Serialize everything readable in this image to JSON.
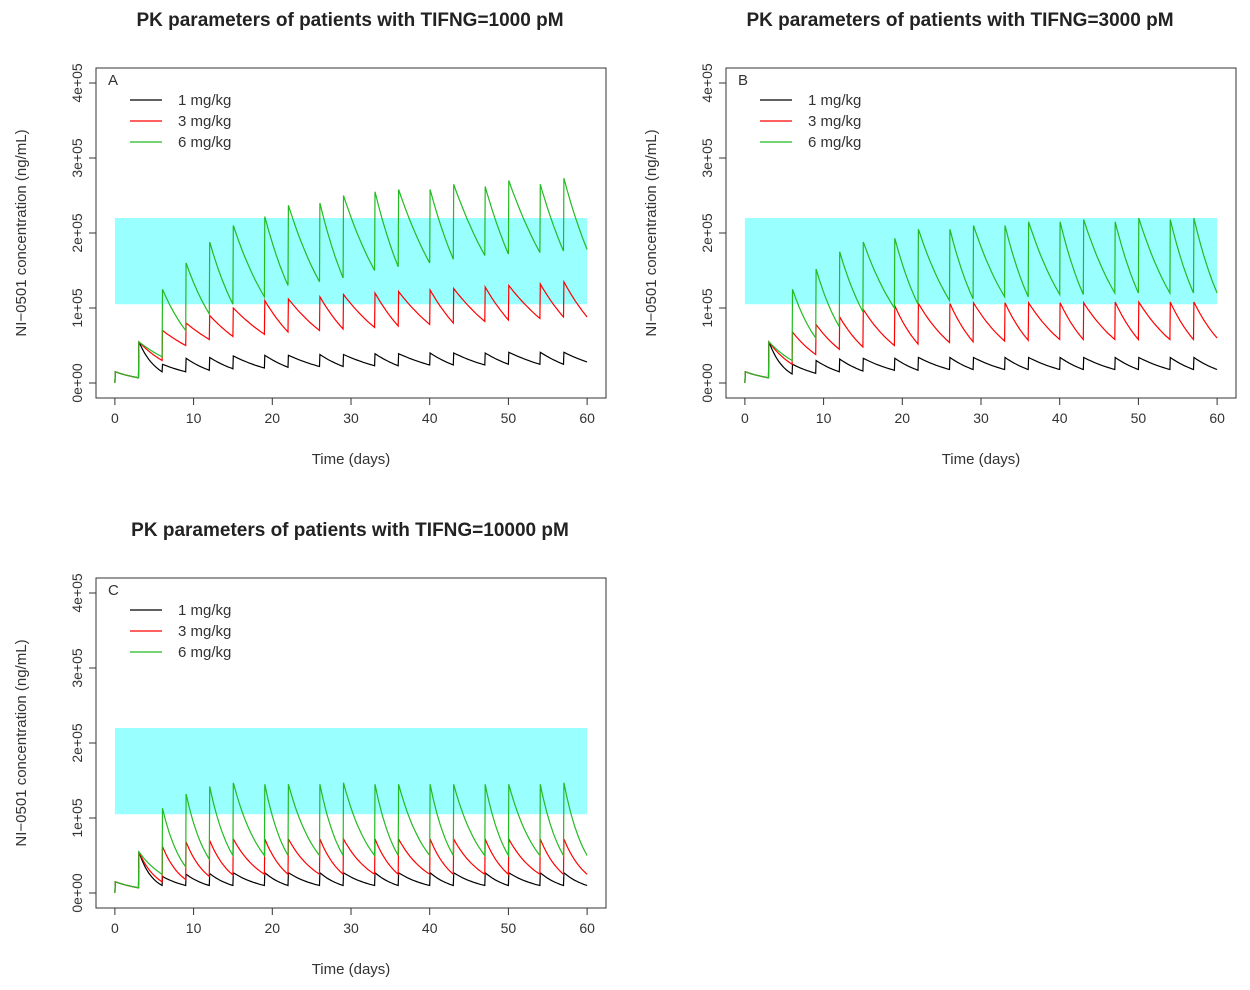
{
  "chart_data": [
    {
      "type": "line",
      "title": "PK parameters of patients with TIFNG=1000 pM",
      "panel_label": "A",
      "xlabel": "Time (days)",
      "ylabel": "NI−0501 concentration (ng/mL)",
      "xlim": [
        0,
        60
      ],
      "ylim": [
        0,
        400000
      ],
      "xticks": [
        "0",
        "10",
        "20",
        "30",
        "40",
        "50",
        "60"
      ],
      "yticks": [
        "0e+00",
        "1e+05",
        "2e+05",
        "3e+05",
        "4e+05"
      ],
      "target_band": [
        105000,
        220000
      ],
      "legend_position": "top-left",
      "dose_days": [
        0,
        3,
        6,
        9,
        12,
        15,
        19,
        22,
        26,
        29,
        33,
        36,
        40,
        43,
        47,
        50,
        54,
        57
      ],
      "series": [
        {
          "name": "1 mg/kg",
          "color": "#000000",
          "peaks": [
            15000,
            55000,
            25000,
            33000,
            34000,
            36000,
            37000,
            37000,
            38000,
            38000,
            39000,
            39000,
            40000,
            40000,
            40000,
            41000,
            41000,
            41000
          ],
          "troughs": [
            7000,
            15000,
            15000,
            17000,
            19000,
            20000,
            21000,
            22000,
            22000,
            23000,
            23000,
            24000,
            24000,
            24000,
            25000,
            25000,
            25000,
            28000
          ]
        },
        {
          "name": "3 mg/kg",
          "color": "#ff0000",
          "peaks": [
            15000,
            55000,
            70000,
            80000,
            90000,
            100000,
            110000,
            112000,
            115000,
            118000,
            120000,
            122000,
            124000,
            126000,
            128000,
            130000,
            132000,
            135000
          ],
          "troughs": [
            7000,
            30000,
            50000,
            58000,
            62000,
            65000,
            68000,
            70000,
            72000,
            74000,
            76000,
            78000,
            80000,
            82000,
            84000,
            86000,
            88000,
            88000
          ]
        },
        {
          "name": "6 mg/kg",
          "color": "#22bb22",
          "peaks": [
            15000,
            55000,
            125000,
            160000,
            188000,
            210000,
            222000,
            237000,
            240000,
            250000,
            255000,
            258000,
            258000,
            265000,
            262000,
            270000,
            265000,
            273000
          ],
          "troughs": [
            7000,
            35000,
            70000,
            92000,
            105000,
            115000,
            130000,
            135000,
            140000,
            150000,
            155000,
            160000,
            165000,
            170000,
            172000,
            174000,
            176000,
            178000
          ]
        }
      ]
    },
    {
      "type": "line",
      "title": "PK parameters of patients with TIFNG=3000 pM",
      "panel_label": "B",
      "xlabel": "Time (days)",
      "ylabel": "NI−0501 concentration (ng/mL)",
      "xlim": [
        0,
        60
      ],
      "ylim": [
        0,
        400000
      ],
      "xticks": [
        "0",
        "10",
        "20",
        "30",
        "40",
        "50",
        "60"
      ],
      "yticks": [
        "0e+00",
        "1e+05",
        "2e+05",
        "3e+05",
        "4e+05"
      ],
      "target_band": [
        105000,
        220000
      ],
      "legend_position": "top-left",
      "dose_days": [
        0,
        3,
        6,
        9,
        12,
        15,
        19,
        22,
        26,
        29,
        33,
        36,
        40,
        43,
        47,
        50,
        54,
        57
      ],
      "series": [
        {
          "name": "1 mg/kg",
          "color": "#000000",
          "peaks": [
            15000,
            55000,
            25000,
            30000,
            32000,
            33000,
            33000,
            34000,
            34000,
            34000,
            34000,
            34000,
            34000,
            34000,
            34000,
            34000,
            34000,
            34000
          ],
          "troughs": [
            7000,
            12000,
            13000,
            15000,
            16000,
            17000,
            17000,
            18000,
            18000,
            18000,
            18000,
            18000,
            18000,
            18000,
            18000,
            18000,
            18000,
            18000
          ]
        },
        {
          "name": "3 mg/kg",
          "color": "#ff0000",
          "peaks": [
            15000,
            55000,
            68000,
            78000,
            88000,
            98000,
            103000,
            106000,
            106000,
            107000,
            107000,
            107000,
            107000,
            107000,
            108000,
            108000,
            108000,
            108000
          ],
          "troughs": [
            7000,
            25000,
            38000,
            45000,
            48000,
            50000,
            52000,
            54000,
            55000,
            56000,
            57000,
            58000,
            58000,
            58000,
            58000,
            58000,
            58000,
            60000
          ]
        },
        {
          "name": "6 mg/kg",
          "color": "#22bb22",
          "peaks": [
            15000,
            55000,
            125000,
            152000,
            175000,
            188000,
            193000,
            205000,
            205000,
            210000,
            210000,
            215000,
            215000,
            218000,
            215000,
            220000,
            218000,
            220000
          ],
          "troughs": [
            7000,
            30000,
            60000,
            75000,
            95000,
            100000,
            105000,
            110000,
            112000,
            115000,
            115000,
            118000,
            118000,
            120000,
            120000,
            120000,
            120000,
            120000
          ]
        }
      ]
    },
    {
      "type": "line",
      "title": "PK parameters of patients with TIFNG=10000 pM",
      "panel_label": "C",
      "xlabel": "Time (days)",
      "ylabel": "NI−0501 concentration (ng/mL)",
      "xlim": [
        0,
        60
      ],
      "ylim": [
        0,
        400000
      ],
      "xticks": [
        "0",
        "10",
        "20",
        "30",
        "40",
        "50",
        "60"
      ],
      "yticks": [
        "0e+00",
        "1e+05",
        "2e+05",
        "3e+05",
        "4e+05"
      ],
      "target_band": [
        105000,
        220000
      ],
      "legend_position": "top-left",
      "dose_days": [
        0,
        3,
        6,
        9,
        12,
        15,
        19,
        22,
        26,
        29,
        33,
        36,
        40,
        43,
        47,
        50,
        54,
        57
      ],
      "series": [
        {
          "name": "1 mg/kg",
          "color": "#000000",
          "peaks": [
            15000,
            55000,
            22000,
            25000,
            26000,
            27000,
            27000,
            27000,
            27000,
            27000,
            27000,
            27000,
            27000,
            27000,
            27000,
            27000,
            27000,
            27000
          ],
          "troughs": [
            7000,
            10000,
            10000,
            10000,
            10000,
            10000,
            10000,
            10000,
            10000,
            10000,
            10000,
            10000,
            10000,
            10000,
            10000,
            10000,
            10000,
            10000
          ]
        },
        {
          "name": "3 mg/kg",
          "color": "#ff0000",
          "peaks": [
            15000,
            55000,
            62000,
            68000,
            70000,
            72000,
            72000,
            72000,
            72000,
            72000,
            72000,
            72000,
            72000,
            72000,
            72000,
            72000,
            72000,
            72000
          ],
          "troughs": [
            7000,
            15000,
            18000,
            22000,
            24000,
            25000,
            25000,
            25000,
            25000,
            25000,
            25000,
            25000,
            25000,
            25000,
            25000,
            25000,
            25000,
            25000
          ]
        },
        {
          "name": "6 mg/kg",
          "color": "#22bb22",
          "peaks": [
            15000,
            55000,
            113000,
            132000,
            142000,
            147000,
            145000,
            145000,
            145000,
            147000,
            145000,
            145000,
            145000,
            145000,
            145000,
            145000,
            145000,
            147000
          ],
          "troughs": [
            7000,
            25000,
            35000,
            45000,
            50000,
            50000,
            50000,
            50000,
            50000,
            50000,
            50000,
            50000,
            50000,
            50000,
            50000,
            50000,
            50000,
            50000
          ]
        }
      ]
    }
  ]
}
